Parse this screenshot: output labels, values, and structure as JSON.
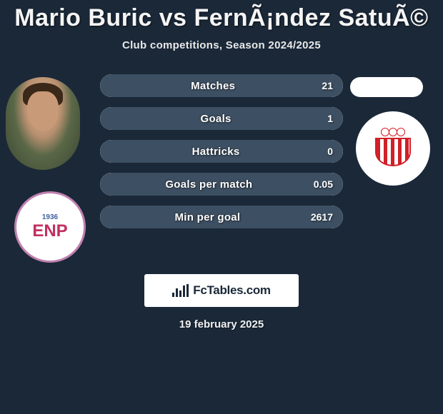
{
  "title": "Mario Buric vs FernÃ¡ndez SatuÃ©",
  "subtitle": "Club competitions, Season 2024/2025",
  "date": "19 february 2025",
  "branding": {
    "text": "FcTables.com"
  },
  "background_color": "#1a2838",
  "left_club": {
    "year": "1936",
    "text": "ENP",
    "border_color": "#c080b0",
    "text_color": "#c03060"
  },
  "right_club": {
    "primary_color": "#d02028"
  },
  "stats": {
    "bar_background": "#ffffff",
    "fill_color": "#3d4f62",
    "rows": [
      {
        "label": "Matches",
        "value": "21",
        "fill_pct": 100
      },
      {
        "label": "Goals",
        "value": "1",
        "fill_pct": 100
      },
      {
        "label": "Hattricks",
        "value": "0",
        "fill_pct": 100
      },
      {
        "label": "Goals per match",
        "value": "0.05",
        "fill_pct": 100
      },
      {
        "label": "Min per goal",
        "value": "2617",
        "fill_pct": 100
      }
    ]
  }
}
